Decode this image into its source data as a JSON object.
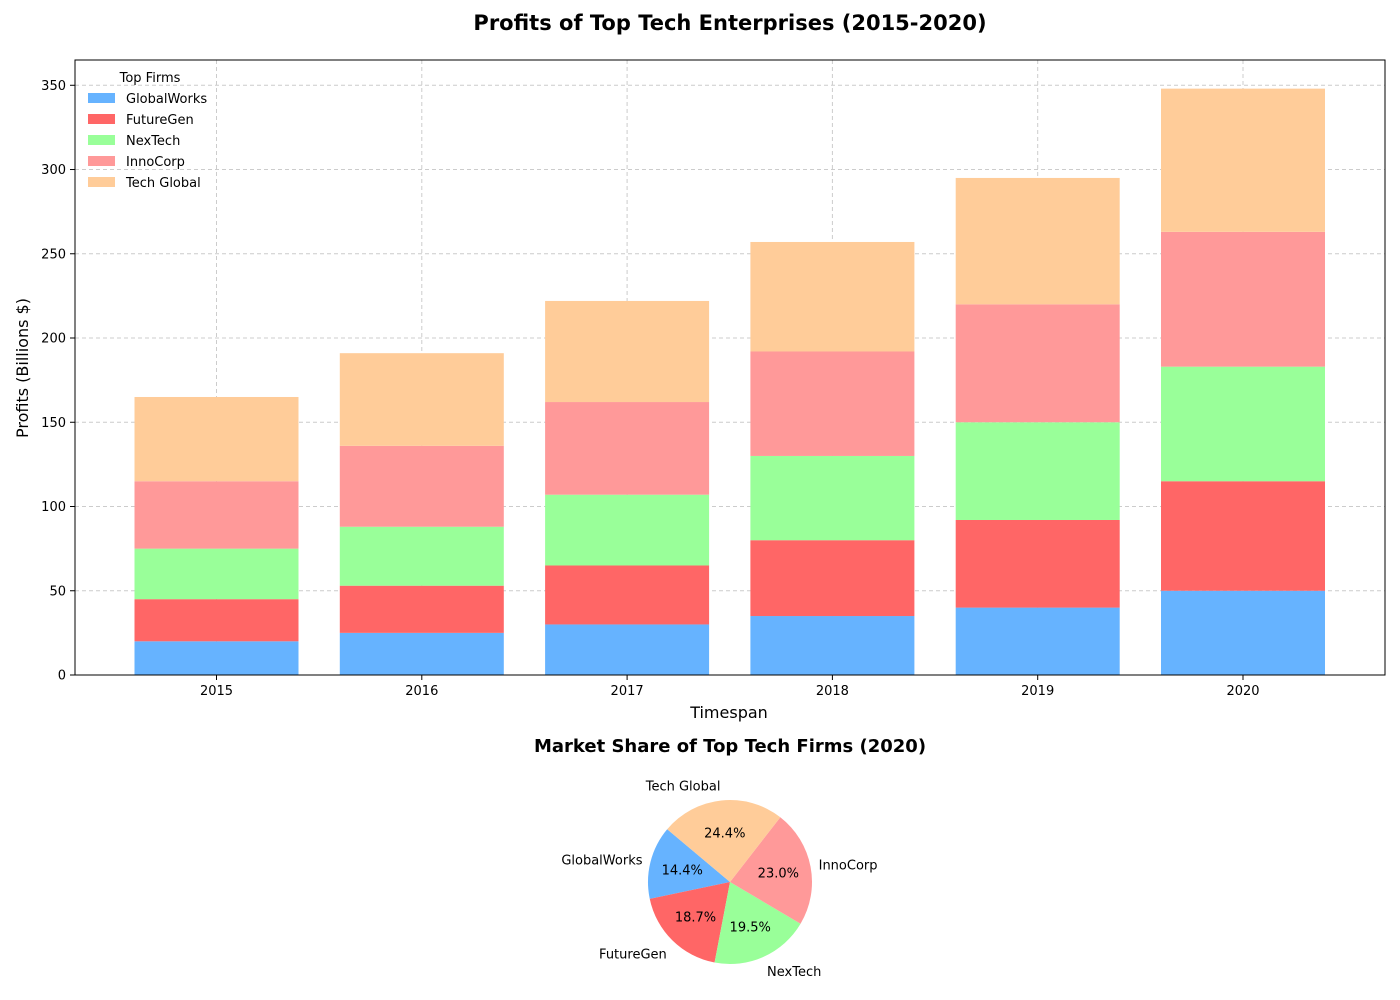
{
  "chart_data": [
    {
      "type": "bar",
      "stacked": true,
      "title": "Profits of Top Tech Enterprises (2015-2020)",
      "xlabel": "Timespan",
      "ylabel": "Profits (Billions $)",
      "categories": [
        "2015",
        "2016",
        "2017",
        "2018",
        "2019",
        "2020"
      ],
      "ylim": [
        0,
        365
      ],
      "yticks": [
        0,
        50,
        100,
        150,
        200,
        250,
        300,
        350
      ],
      "grid": true,
      "legend": {
        "title": "Top Firms",
        "placement": "top-left"
      },
      "series": [
        {
          "name": "GlobalWorks",
          "color": "#66b3ff",
          "values": [
            20,
            25,
            30,
            35,
            40,
            50
          ]
        },
        {
          "name": "FutureGen",
          "color": "#ff6666",
          "values": [
            25,
            28,
            35,
            45,
            52,
            65
          ]
        },
        {
          "name": "NexTech",
          "color": "#99ff99",
          "values": [
            30,
            35,
            42,
            50,
            58,
            68
          ]
        },
        {
          "name": "InnoCorp",
          "color": "#ff9999",
          "values": [
            40,
            48,
            55,
            62,
            70,
            80
          ]
        },
        {
          "name": "Tech Global",
          "color": "#ffcc99",
          "values": [
            50,
            55,
            60,
            65,
            75,
            85
          ]
        }
      ]
    },
    {
      "type": "pie",
      "title": "Market Share of Top Tech Firms (2020)",
      "slices": [
        {
          "label": "GlobalWorks",
          "value": 14.4,
          "pct_label": "14.4%",
          "color": "#66b3ff"
        },
        {
          "label": "FutureGen",
          "value": 18.7,
          "pct_label": "18.7%",
          "color": "#ff6666"
        },
        {
          "label": "NexTech",
          "value": 19.5,
          "pct_label": "19.5%",
          "color": "#99ff99"
        },
        {
          "label": "InnoCorp",
          "value": 23.0,
          "pct_label": "23.0%",
          "color": "#ff9999"
        },
        {
          "label": "Tech Global",
          "value": 24.4,
          "pct_label": "24.4%",
          "color": "#ffcc99"
        }
      ],
      "start_angle_deg": 140,
      "direction": "counterclockwise"
    }
  ]
}
